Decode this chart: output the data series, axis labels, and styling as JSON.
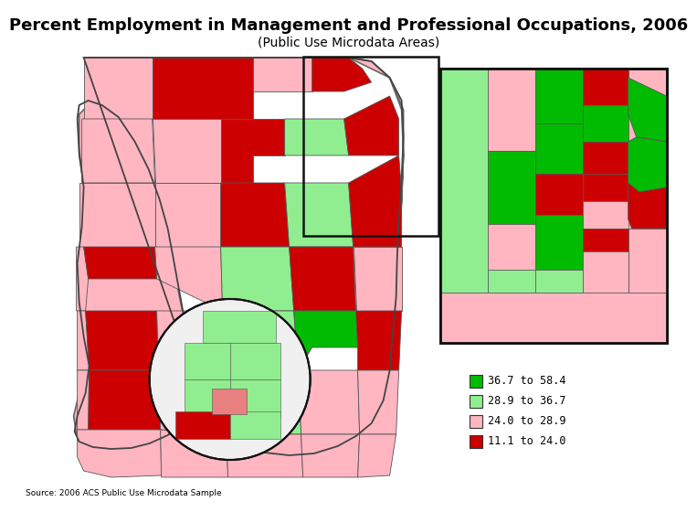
{
  "title": "Percent Employment in Management and Professional Occupations, 2006",
  "subtitle": "(Public Use Microdata Areas)",
  "source": "Source: 2006 ACS Public Use Microdata Sample",
  "legend_items": [
    {
      "label": "36.7 to 58.4",
      "color": "#00BB00"
    },
    {
      "label": "28.9 to 36.7",
      "color": "#90EE90"
    },
    {
      "label": "24.0 to 28.9",
      "color": "#FFB6C1"
    },
    {
      "label": "11.1 to 24.0",
      "color": "#CC0000"
    }
  ],
  "dark_green": "#00BB00",
  "light_green": "#90EE90",
  "light_pink": "#FFB6C1",
  "dark_red": "#CC0000",
  "bg_color": "#FFFFFF",
  "title_fontsize": 13,
  "subtitle_fontsize": 10,
  "source_fontsize": 6.5
}
